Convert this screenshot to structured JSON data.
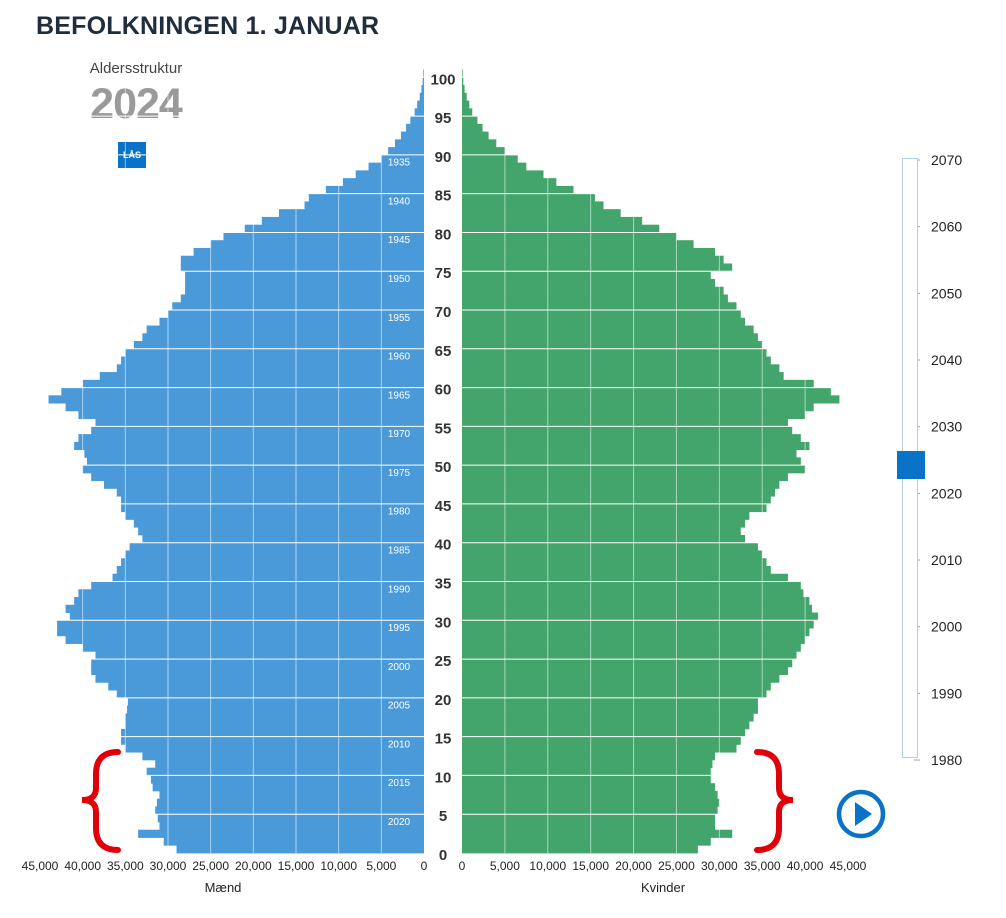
{
  "header": {
    "title": "BEFOLKNINGEN 1. JANUAR",
    "subtitle": "Aldersstruktur",
    "current_year": "2024"
  },
  "controls": {
    "lock_label": "LÅS",
    "slider_value": 2024
  },
  "colors": {
    "men": "#4a9ada",
    "men_dark": "#0a73c8",
    "women": "#43a56b",
    "women_dark": "#028a3a",
    "accent": "#0a73c8",
    "brace": "#e0000a"
  },
  "chart_data": {
    "type": "bar",
    "orientation": "horizontal",
    "title": "",
    "age_ticks": [
      "0",
      "5",
      "10",
      "15",
      "20",
      "25",
      "30",
      "35",
      "40",
      "45",
      "50",
      "55",
      "60",
      "65",
      "70",
      "75",
      "80",
      "85",
      "90",
      "95",
      "100"
    ],
    "cohort_labels": [
      "2020",
      "2015",
      "2010",
      "2005",
      "2000",
      "1995",
      "1990",
      "1985",
      "1980",
      "1975",
      "1970",
      "1965",
      "1960",
      "1955",
      "1950",
      "1945",
      "1940",
      "1935"
    ],
    "xlim": [
      0,
      45000
    ],
    "x_ticks_men": [
      "45,000",
      "40,000",
      "35,000",
      "30,000",
      "25,000",
      "20,000",
      "15,000",
      "10,000",
      "5,000",
      "0"
    ],
    "x_ticks_women": [
      "0",
      "5,000",
      "10,000",
      "15,000",
      "20,000",
      "25,000",
      "30,000",
      "35,000",
      "40,000",
      "45,000"
    ],
    "xlabel_men": "Mænd",
    "xlabel_women": "Kvinder",
    "slider_ticks": [
      "2070",
      "2060",
      "2050",
      "2040",
      "2030",
      "2020",
      "2010",
      "2000",
      "1990",
      "1980"
    ],
    "ages": [
      0,
      1,
      2,
      3,
      4,
      5,
      6,
      7,
      8,
      9,
      10,
      11,
      12,
      13,
      14,
      15,
      16,
      17,
      18,
      19,
      20,
      21,
      22,
      23,
      24,
      25,
      26,
      27,
      28,
      29,
      30,
      31,
      32,
      33,
      34,
      35,
      36,
      37,
      38,
      39,
      40,
      41,
      42,
      43,
      44,
      45,
      46,
      47,
      48,
      49,
      50,
      51,
      52,
      53,
      54,
      55,
      56,
      57,
      58,
      59,
      60,
      61,
      62,
      63,
      64,
      65,
      66,
      67,
      68,
      69,
      70,
      71,
      72,
      73,
      74,
      75,
      76,
      77,
      78,
      79,
      80,
      81,
      82,
      83,
      84,
      85,
      86,
      87,
      88,
      89,
      90,
      91,
      92,
      93,
      94,
      95,
      96,
      97,
      98,
      99,
      100
    ],
    "series": [
      {
        "name": "Mænd",
        "values": [
          29000,
          30500,
          33500,
          31000,
          31200,
          31500,
          31300,
          31000,
          31800,
          32000,
          32500,
          31500,
          33000,
          35000,
          35500,
          35500,
          35000,
          35000,
          34800,
          34700,
          36000,
          37000,
          38500,
          39000,
          39000,
          38500,
          40000,
          42000,
          43000,
          43000,
          41500,
          42000,
          41000,
          40500,
          39000,
          36500,
          36000,
          35500,
          35000,
          34500,
          33000,
          33500,
          34000,
          35000,
          35500,
          35500,
          36000,
          37500,
          39000,
          40000,
          39500,
          39800,
          41000,
          40500,
          39000,
          38500,
          40500,
          42000,
          44000,
          42500,
          40000,
          38000,
          36000,
          35500,
          35000,
          34000,
          33000,
          32500,
          31000,
          30000,
          29500,
          28500,
          28000,
          28000,
          28000,
          28500,
          28500,
          27000,
          25000,
          23500,
          21000,
          19000,
          17000,
          14000,
          13500,
          11500,
          9500,
          8000,
          6500,
          5000,
          4200,
          3400,
          2700,
          2100,
          1600,
          1100,
          800,
          500,
          300,
          150,
          80
        ]
      },
      {
        "name": "Kvinder",
        "values": [
          27500,
          29000,
          31500,
          29500,
          29500,
          29800,
          30000,
          29800,
          29500,
          29000,
          29000,
          29200,
          29500,
          32000,
          32500,
          33000,
          33500,
          34000,
          34500,
          34500,
          35500,
          36000,
          37000,
          38000,
          38500,
          39000,
          39500,
          40000,
          40500,
          41000,
          41500,
          40800,
          40500,
          39800,
          39500,
          38000,
          36000,
          35500,
          35000,
          34500,
          33000,
          32500,
          33000,
          33500,
          35500,
          36000,
          36500,
          37000,
          38000,
          40000,
          39500,
          39000,
          40500,
          39500,
          38500,
          38000,
          40000,
          41000,
          44000,
          43000,
          41000,
          37500,
          37000,
          36000,
          35500,
          35000,
          34500,
          34000,
          33000,
          32500,
          32000,
          31000,
          30500,
          29500,
          29000,
          31500,
          30500,
          29500,
          27000,
          25000,
          23000,
          21000,
          18500,
          16500,
          15500,
          13000,
          11000,
          9500,
          7500,
          6500,
          5000,
          4000,
          3100,
          2400,
          1800,
          1200,
          850,
          550,
          300,
          150,
          80
        ]
      }
    ]
  }
}
